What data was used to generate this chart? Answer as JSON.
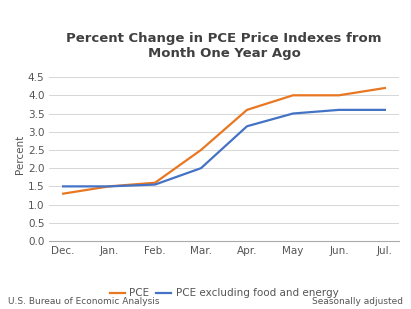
{
  "title": "Percent Change in PCE Price Indexes from\nMonth One Year Ago",
  "ylabel": "Percent",
  "categories": [
    "Dec.",
    "Jan.",
    "Feb.",
    "Mar.",
    "Apr.",
    "May",
    "Jun.",
    "Jul."
  ],
  "pce_values": [
    1.3,
    1.5,
    1.6,
    2.5,
    3.6,
    4.0,
    4.0,
    4.2
  ],
  "pce_ex_values": [
    1.5,
    1.5,
    1.55,
    2.0,
    3.15,
    3.5,
    3.6,
    3.6
  ],
  "pce_color": "#E87722",
  "pce_ex_color": "#4472C4",
  "pce_label": "PCE",
  "pce_ex_label": "PCE excluding food and energy",
  "ylim": [
    0.0,
    4.75
  ],
  "yticks": [
    0.0,
    0.5,
    1.0,
    1.5,
    2.0,
    2.5,
    3.0,
    3.5,
    4.0,
    4.5
  ],
  "footnote_left": "U.S. Bureau of Economic Analysis",
  "footnote_right": "Seasonally adjusted",
  "background_color": "#ffffff",
  "grid_color": "#d0d0d0",
  "title_color": "#404040",
  "title_fontsize": 9.5,
  "axis_label_fontsize": 7.5,
  "tick_fontsize": 7.5,
  "legend_fontsize": 7.5,
  "footnote_fontsize": 6.5,
  "line_width": 1.6
}
